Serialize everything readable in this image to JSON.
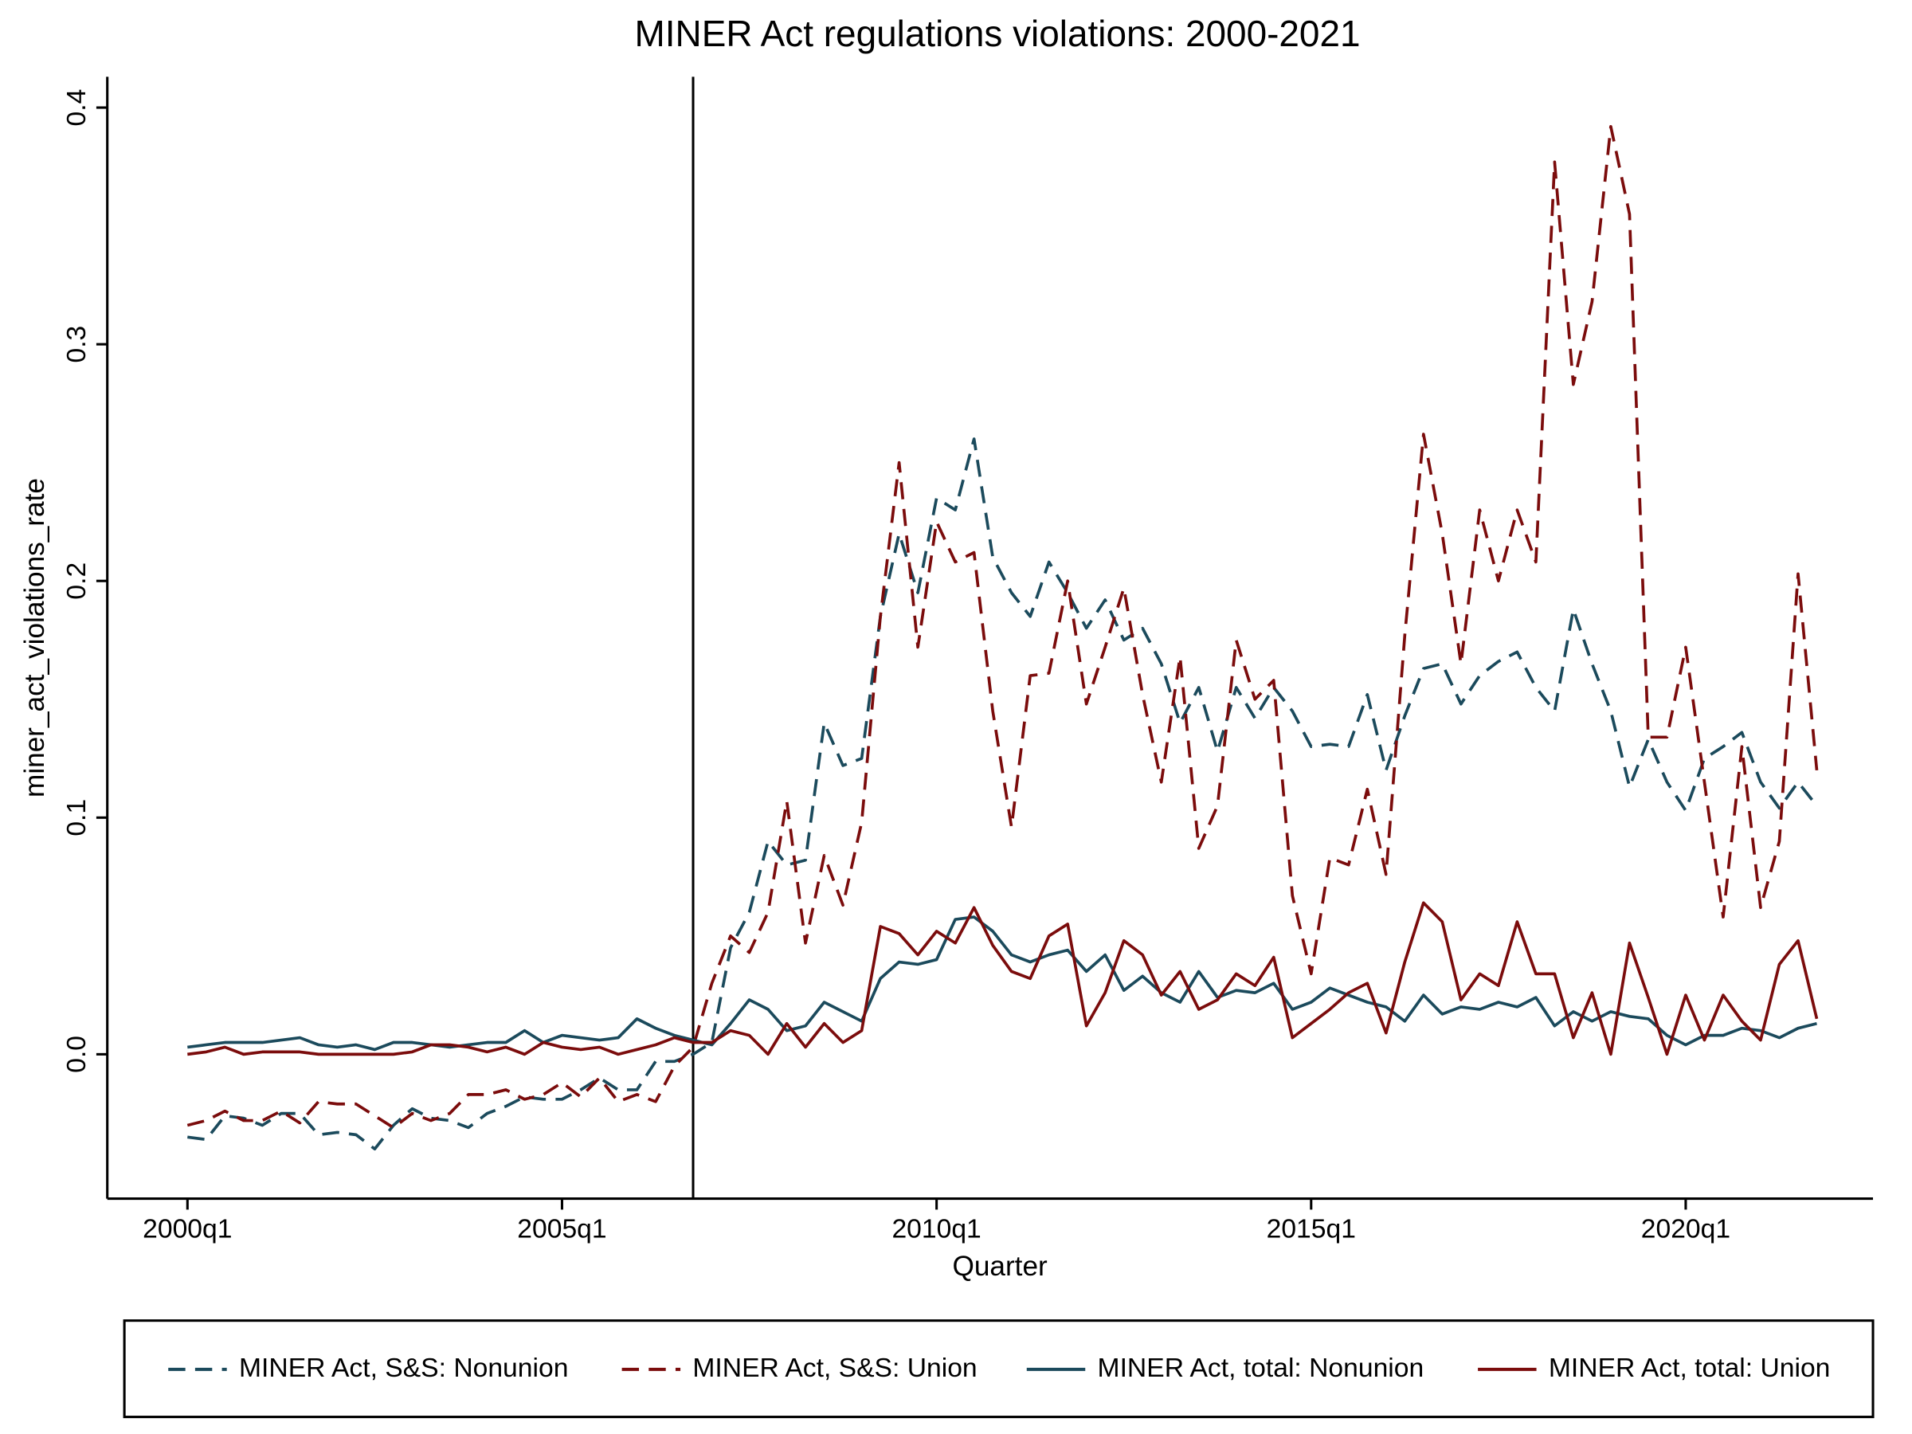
{
  "chart_data": {
    "type": "line",
    "title": "MINER Act regulations violations: 2000-2021",
    "x_label": "Quarter",
    "y_label": "miner_act_violations_rate",
    "x": [
      2000,
      2000.25,
      2000.5,
      2000.75,
      2001,
      2001.25,
      2001.5,
      2001.75,
      2002,
      2002.25,
      2002.5,
      2002.75,
      2003,
      2003.25,
      2003.5,
      2003.75,
      2004,
      2004.25,
      2004.5,
      2004.75,
      2005,
      2005.25,
      2005.5,
      2005.75,
      2006,
      2006.25,
      2006.5,
      2006.75,
      2007,
      2007.25,
      2007.5,
      2007.75,
      2008,
      2008.25,
      2008.5,
      2008.75,
      2009,
      2009.25,
      2009.5,
      2009.75,
      2010,
      2010.25,
      2010.5,
      2010.75,
      2011,
      2011.25,
      2011.5,
      2011.75,
      2012,
      2012.25,
      2012.5,
      2012.75,
      2013,
      2013.25,
      2013.5,
      2013.75,
      2014,
      2014.25,
      2014.5,
      2014.75,
      2015,
      2015.25,
      2015.5,
      2015.75,
      2016,
      2016.25,
      2016.5,
      2016.75,
      2017,
      2017.25,
      2017.5,
      2017.75,
      2018,
      2018.25,
      2018.5,
      2018.75,
      2019,
      2019.25,
      2019.5,
      2019.75,
      2020,
      2020.25,
      2020.5,
      2020.75,
      2021,
      2021.25,
      2021.5,
      2021.75
    ],
    "xlim": [
      1998.93,
      2022.5
    ],
    "xticks": [
      {
        "value": 2000,
        "label": "2000q1"
      },
      {
        "value": 2005,
        "label": "2005q1"
      },
      {
        "value": 2010,
        "label": "2010q1"
      },
      {
        "value": 2015,
        "label": "2015q1"
      },
      {
        "value": 2020,
        "label": "2020q1"
      }
    ],
    "ylim": [
      -0.061,
      0.413
    ],
    "yticks": [
      {
        "value": 0,
        "label": "0.0"
      },
      0.1,
      0.2,
      0.3,
      0.4
    ],
    "vline": 2006.75,
    "legend": "bottom",
    "series": [
      {
        "name": "MINER Act, S&S: Nonunion",
        "color": "#1b4a5c",
        "dash": true,
        "values": [
          -0.035,
          -0.036,
          -0.026,
          -0.027,
          -0.03,
          -0.025,
          -0.025,
          -0.034,
          -0.033,
          -0.034,
          -0.04,
          -0.03,
          -0.023,
          -0.027,
          -0.028,
          -0.031,
          -0.025,
          -0.022,
          -0.018,
          -0.019,
          -0.019,
          -0.015,
          -0.01,
          -0.015,
          -0.015,
          -0.003,
          -0.003,
          0.0,
          0.005,
          0.045,
          0.06,
          0.09,
          0.08,
          0.082,
          0.14,
          0.122,
          0.125,
          0.185,
          0.22,
          0.195,
          0.235,
          0.23,
          0.26,
          0.21,
          0.195,
          0.185,
          0.208,
          0.195,
          0.18,
          0.192,
          0.175,
          0.18,
          0.165,
          0.14,
          0.155,
          0.128,
          0.155,
          0.142,
          0.155,
          0.145,
          0.13,
          0.131,
          0.13,
          0.152,
          0.12,
          0.143,
          0.163,
          0.165,
          0.148,
          0.16,
          0.166,
          0.17,
          0.155,
          0.145,
          0.188,
          0.165,
          0.145,
          0.113,
          0.133,
          0.115,
          0.103,
          0.125,
          0.13,
          0.136,
          0.115,
          0.104,
          0.115,
          0.105
        ]
      },
      {
        "name": "MINER Act, S&S: Union",
        "color": "#7b0c0c",
        "dash": true,
        "values": [
          -0.03,
          -0.028,
          -0.024,
          -0.028,
          -0.028,
          -0.024,
          -0.029,
          -0.02,
          -0.021,
          -0.021,
          -0.026,
          -0.031,
          -0.025,
          -0.028,
          -0.025,
          -0.017,
          -0.017,
          -0.015,
          -0.019,
          -0.017,
          -0.012,
          -0.018,
          -0.01,
          -0.02,
          -0.017,
          -0.02,
          -0.005,
          0.003,
          0.03,
          0.05,
          0.043,
          0.06,
          0.107,
          0.047,
          0.084,
          0.063,
          0.098,
          0.185,
          0.25,
          0.172,
          0.225,
          0.208,
          0.212,
          0.145,
          0.096,
          0.16,
          0.161,
          0.2,
          0.148,
          0.172,
          0.197,
          0.152,
          0.115,
          0.168,
          0.087,
          0.105,
          0.175,
          0.15,
          0.158,
          0.067,
          0.034,
          0.083,
          0.08,
          0.112,
          0.076,
          0.177,
          0.262,
          0.22,
          0.165,
          0.23,
          0.2,
          0.23,
          0.208,
          0.377,
          0.283,
          0.318,
          0.392,
          0.355,
          0.134,
          0.134,
          0.172,
          0.115,
          0.058,
          0.13,
          0.062,
          0.09,
          0.203,
          0.12
        ]
      },
      {
        "name": "MINER Act, total: Nonunion",
        "color": "#1b4a5c",
        "dash": false,
        "values": [
          0.003,
          0.004,
          0.005,
          0.005,
          0.005,
          0.006,
          0.007,
          0.004,
          0.003,
          0.004,
          0.002,
          0.005,
          0.005,
          0.004,
          0.003,
          0.004,
          0.005,
          0.005,
          0.01,
          0.005,
          0.008,
          0.007,
          0.006,
          0.007,
          0.015,
          0.011,
          0.008,
          0.006,
          0.004,
          0.013,
          0.023,
          0.019,
          0.01,
          0.012,
          0.022,
          0.018,
          0.014,
          0.032,
          0.039,
          0.038,
          0.04,
          0.057,
          0.058,
          0.052,
          0.042,
          0.039,
          0.042,
          0.044,
          0.035,
          0.042,
          0.027,
          0.033,
          0.026,
          0.022,
          0.035,
          0.024,
          0.027,
          0.026,
          0.03,
          0.019,
          0.022,
          0.028,
          0.025,
          0.022,
          0.02,
          0.014,
          0.025,
          0.017,
          0.02,
          0.019,
          0.022,
          0.02,
          0.024,
          0.012,
          0.018,
          0.014,
          0.018,
          0.016,
          0.015,
          0.008,
          0.004,
          0.008,
          0.008,
          0.011,
          0.01,
          0.007,
          0.011,
          0.013
        ]
      },
      {
        "name": "MINER Act, total: Union",
        "color": "#7b0c0c",
        "dash": false,
        "values": [
          0,
          0.001,
          0.003,
          0,
          0.001,
          0.001,
          0.001,
          0,
          0,
          0,
          0,
          0,
          0.001,
          0.004,
          0.004,
          0.003,
          0.001,
          0.003,
          0,
          0.005,
          0.003,
          0.002,
          0.003,
          0,
          0.002,
          0.004,
          0.007,
          0.005,
          0.005,
          0.01,
          0.008,
          0,
          0.013,
          0.003,
          0.013,
          0.005,
          0.01,
          0.054,
          0.051,
          0.042,
          0.052,
          0.047,
          0.062,
          0.046,
          0.035,
          0.032,
          0.05,
          0.055,
          0.012,
          0.026,
          0.048,
          0.042,
          0.025,
          0.035,
          0.019,
          0.023,
          0.034,
          0.029,
          0.041,
          0.007,
          0.013,
          0.019,
          0.026,
          0.03,
          0.009,
          0.039,
          0.064,
          0.056,
          0.023,
          0.034,
          0.029,
          0.056,
          0.034,
          0.034,
          0.007,
          0.026,
          0,
          0.047,
          0.024,
          0,
          0.025,
          0.006,
          0.025,
          0.014,
          0.006,
          0.038,
          0.048,
          0.015
        ]
      }
    ]
  }
}
